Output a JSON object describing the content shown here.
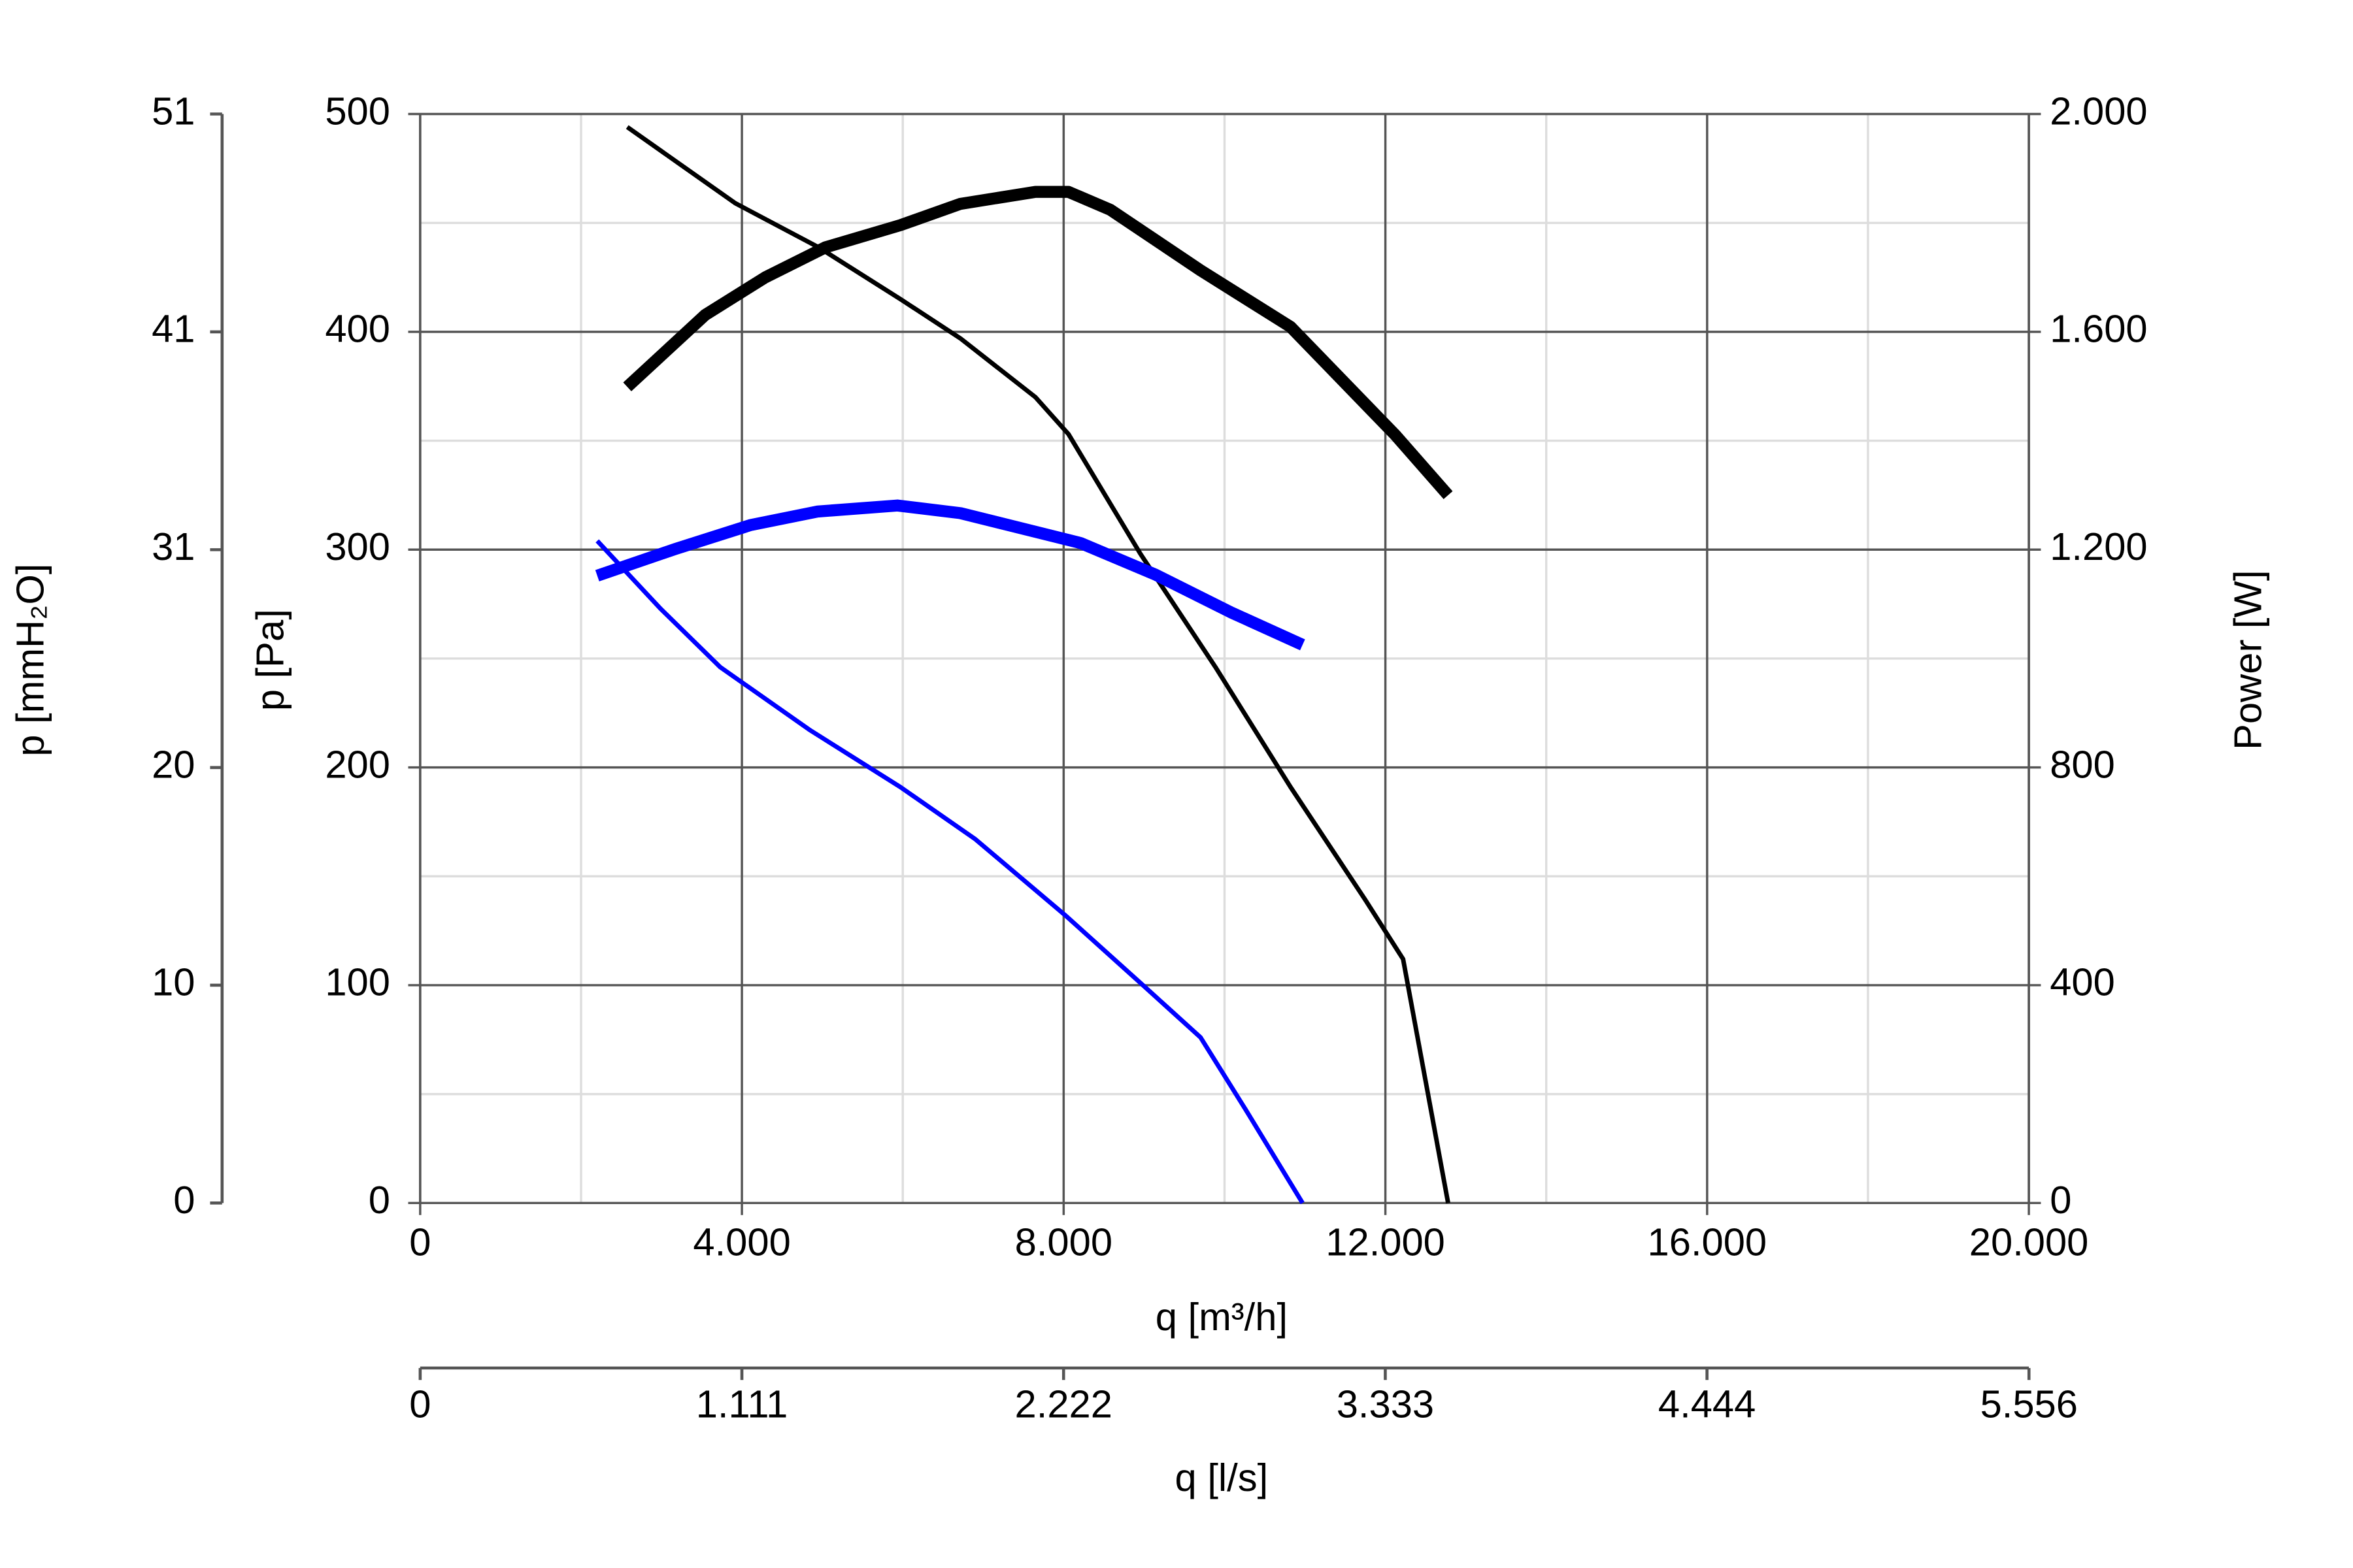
{
  "chart_data": {
    "type": "line",
    "xlabel": "q [m³/h]",
    "ylabel": "p [Pa]",
    "y2label": "Power [W]",
    "y3label": "p [mmH₂O]",
    "x2label": "q [l/s]",
    "xlim": [
      0,
      20000
    ],
    "xticks": [
      0,
      {
        "value": 4000,
        "label": "4.000"
      },
      {
        "value": 8000,
        "label": "8.000"
      },
      {
        "value": 12000,
        "label": "12.000"
      },
      {
        "value": 16000,
        "label": "16.000"
      },
      {
        "value": 20000,
        "label": "20.000"
      }
    ],
    "xminor": [
      2000,
      6000,
      10000,
      14000,
      18000
    ],
    "ylim": [
      0,
      500
    ],
    "yticks": [
      0,
      100,
      200,
      300,
      400,
      500
    ],
    "yminor": [
      50,
      150,
      250,
      350,
      450
    ],
    "y2lim": [
      0,
      2000
    ],
    "y2ticks": [
      0,
      400,
      800,
      {
        "value": 1200,
        "label": "1.200"
      },
      {
        "value": 1600,
        "label": "1.600"
      },
      {
        "value": 2000,
        "label": "2.000"
      }
    ],
    "y3lim": [
      0,
      50.99
    ],
    "y3ticks": [
      0,
      {
        "value": 10.2,
        "label": "10"
      },
      {
        "value": 20.39,
        "label": "20"
      },
      {
        "value": 30.59,
        "label": "31"
      },
      {
        "value": 40.79,
        "label": "41"
      },
      {
        "value": 50.99,
        "label": "51"
      }
    ],
    "x2lim": [
      0,
      5555.6
    ],
    "x2ticks": [
      0,
      {
        "value": 1111,
        "label": "1.111"
      },
      {
        "value": 2222,
        "label": "2.222"
      },
      {
        "value": 3333,
        "label": "3.333"
      },
      {
        "value": 4444,
        "label": "4.444"
      },
      {
        "value": 5556,
        "label": "5.556"
      }
    ],
    "grid": true,
    "series": [
      {
        "color": "#000000",
        "width": 3,
        "axis": "y",
        "x": [
          2575,
          3918,
          4944,
          5970,
          6716,
          7649,
          8060,
          8955,
          9888,
          10821,
          11754,
          12220,
          12500,
          12780
        ],
        "values": [
          494,
          459,
          439,
          415,
          397,
          370,
          353,
          298,
          246,
          191,
          139,
          112,
          56,
          0
        ]
      },
      {
        "color": "#0000ff",
        "width": 3,
        "axis": "y",
        "x": [
          2201,
          2985,
          3731,
          4851,
          5970,
          6903,
          8022,
          8955,
          9701,
          10261,
          10970
        ],
        "values": [
          304,
          273,
          246,
          217,
          191,
          167,
          132,
          101,
          76,
          43,
          0
        ]
      },
      {
        "color": "#000000",
        "width": 8,
        "axis": "y2",
        "x": [
          2575,
          3545,
          4291,
          5037,
          5970,
          6716,
          7649,
          8060,
          8582,
          9701,
          10821,
          12127,
          12780
        ],
        "values": [
          1499,
          1631,
          1700,
          1755,
          1796,
          1835,
          1857,
          1857,
          1824,
          1713,
          1609,
          1410,
          1300
        ]
      },
      {
        "color": "#0000ff",
        "width": 8,
        "axis": "y2",
        "x": [
          2201,
          3172,
          4104,
          4944,
          5933,
          6716,
          8209,
          9142,
          10075,
          10970
        ],
        "values": [
          1152,
          1201,
          1245,
          1270,
          1281,
          1267,
          1212,
          1154,
          1085,
          1025
        ]
      }
    ]
  }
}
